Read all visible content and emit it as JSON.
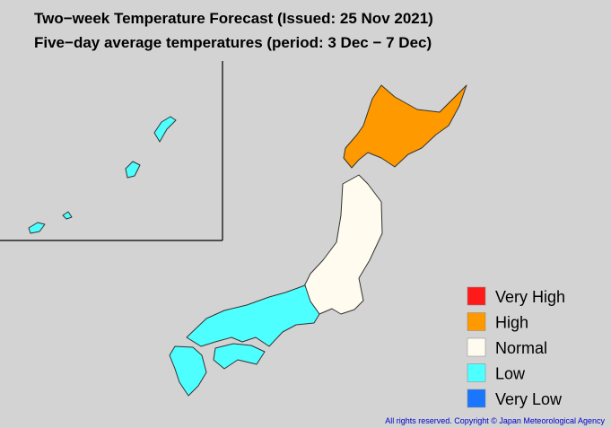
{
  "header": {
    "title": "Two−week Temperature Forecast (Issued: 25 Nov 2021)",
    "subtitle": "Five−day average temperatures (period: 3 Dec − 7 Dec)"
  },
  "legend": {
    "items": [
      {
        "label": "Very High",
        "color": "#ff1a1a"
      },
      {
        "label": "High",
        "color": "#ff9900"
      },
      {
        "label": "Normal",
        "color": "#fffbee"
      },
      {
        "label": "Low",
        "color": "#4dffff"
      },
      {
        "label": "Very Low",
        "color": "#1a75ff"
      }
    ]
  },
  "footer": {
    "copyright": "All rights reserved. Copyright © Japan Meteorological Agency"
  }
}
